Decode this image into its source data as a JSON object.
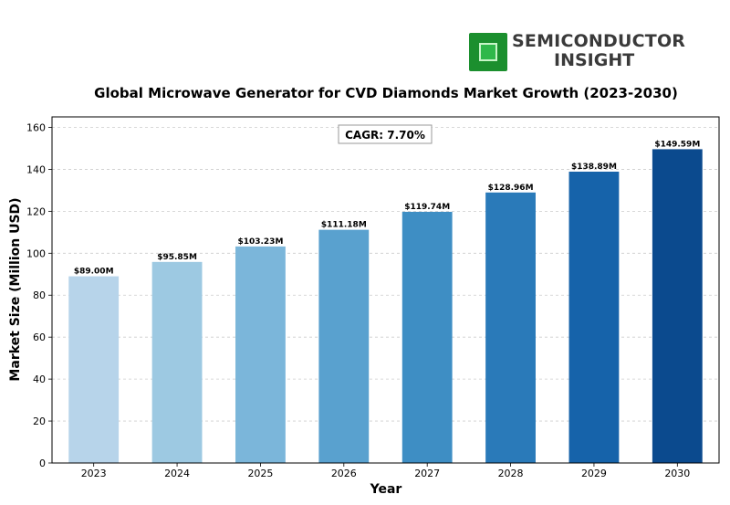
{
  "logo": {
    "line1": "SEMICONDUCTOR",
    "line2": "INSIGHT"
  },
  "chart_data": {
    "type": "bar",
    "title": "Global Microwave Generator for CVD Diamonds Market Growth (2023-2030)",
    "xlabel": "Year",
    "ylabel": "Market Size (Million USD)",
    "categories": [
      "2023",
      "2024",
      "2025",
      "2026",
      "2027",
      "2028",
      "2029",
      "2030"
    ],
    "values": [
      89.0,
      95.85,
      103.23,
      111.18,
      119.74,
      128.96,
      138.89,
      149.59
    ],
    "data_labels": [
      "$89.00M",
      "$95.85M",
      "$103.23M",
      "$111.18M",
      "$119.74M",
      "$128.96M",
      "$138.89M",
      "$149.59M"
    ],
    "yticks": [
      0,
      20,
      40,
      60,
      80,
      100,
      120,
      140,
      160
    ],
    "ylim": [
      0,
      165
    ],
    "grid": true,
    "annotation": "CAGR: 7.70%",
    "colors": [
      "#b7d4ea",
      "#9dc9e2",
      "#7bb6da",
      "#59a1cf",
      "#3e8ec4",
      "#2a7ab9",
      "#1663aa",
      "#0b4a8e"
    ]
  }
}
